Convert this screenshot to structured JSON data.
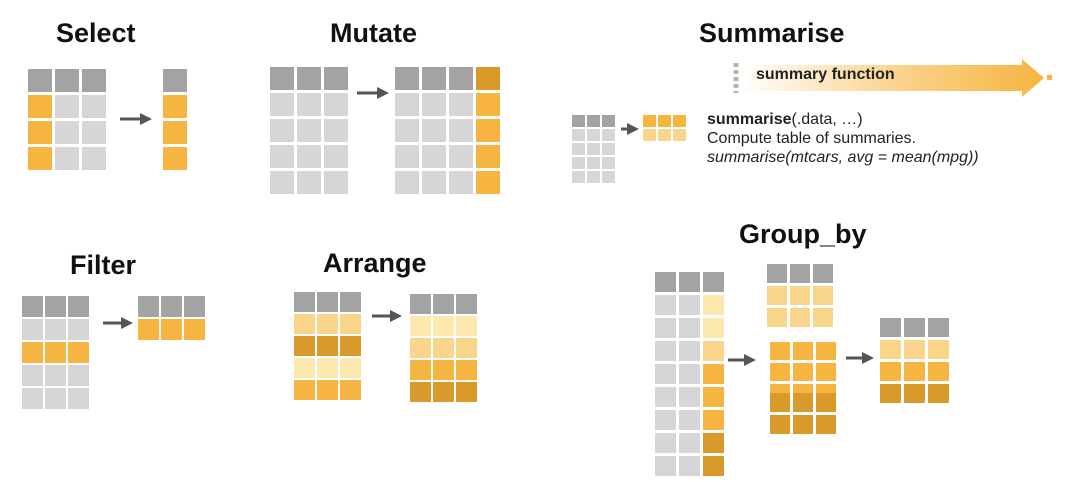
{
  "colors": {
    "gray_header": "#a3a3a3",
    "gray_cell": "#d6d6d8",
    "orange": "#f5b540",
    "orange_dark": "#d99a2b",
    "orange_light": "#f9d58c",
    "cream": "#fde8b0",
    "brown": "#c98d1f",
    "arrow": "#555555"
  },
  "titles": {
    "select": "Select",
    "mutate": "Mutate",
    "summarise": "Summarise",
    "filter": "Filter",
    "arrange": "Arrange",
    "group_by": "Group_by"
  },
  "summarise_box": {
    "banner_label": "summary function",
    "function_name": "summarise",
    "function_args": "(.data, …)",
    "description": "Compute table of summaries.",
    "example": "summarise(mtcars, avg = mean(mpg))"
  }
}
